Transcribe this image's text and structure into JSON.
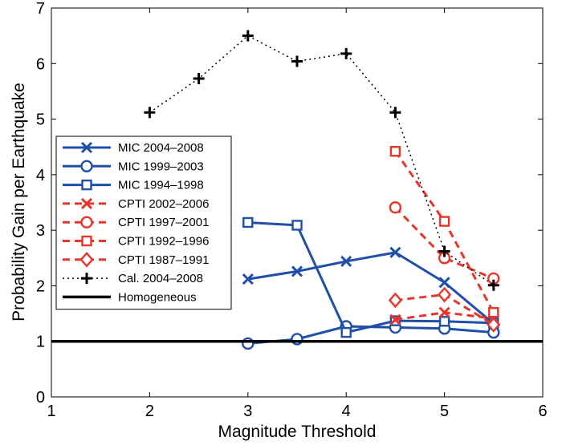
{
  "chart_data": {
    "type": "line",
    "xlabel": "Magnitude Threshold",
    "ylabel": "Probability Gain per Earthquake",
    "xlim": [
      1,
      6
    ],
    "ylim": [
      0,
      7
    ],
    "xticks": [
      "1",
      "2",
      "3",
      "4",
      "5",
      "6"
    ],
    "yticks": [
      "0",
      "1",
      "2",
      "3",
      "4",
      "5",
      "6",
      "7"
    ],
    "grid": false,
    "legend_position": "center-left",
    "series": [
      {
        "name": "MIC 2004–2008",
        "color": "#1f4fa8",
        "dash": "solid",
        "marker": "x",
        "x": [
          3.0,
          3.5,
          4.0,
          4.5,
          5.0,
          5.5
        ],
        "y": [
          2.12,
          2.26,
          2.44,
          2.6,
          2.06,
          1.32
        ]
      },
      {
        "name": "MIC 1999–2003",
        "color": "#1f4fa8",
        "dash": "solid",
        "marker": "circle",
        "x": [
          3.0,
          3.5,
          4.0,
          4.5,
          5.0,
          5.5
        ],
        "y": [
          0.96,
          1.04,
          1.27,
          1.25,
          1.23,
          1.16
        ]
      },
      {
        "name": "MIC 1994–1998",
        "color": "#1f4fa8",
        "dash": "solid",
        "marker": "square",
        "x": [
          3.0,
          3.5,
          4.0,
          4.5,
          5.0,
          5.5
        ],
        "y": [
          3.14,
          3.09,
          1.16,
          1.37,
          1.36,
          1.33
        ]
      },
      {
        "name": "CPTI 2002–2006",
        "color": "#e8352b",
        "dash": "dashed",
        "marker": "x",
        "x": [
          4.5,
          5.0,
          5.5
        ],
        "y": [
          1.39,
          1.52,
          1.41
        ]
      },
      {
        "name": "CPTI 1997–2001",
        "color": "#e8352b",
        "dash": "dashed",
        "marker": "circle",
        "x": [
          4.5,
          5.0,
          5.5
        ],
        "y": [
          3.41,
          2.5,
          2.13
        ]
      },
      {
        "name": "CPTI 1992–1996",
        "color": "#e8352b",
        "dash": "dashed",
        "marker": "square",
        "x": [
          4.5,
          5.0,
          5.5
        ],
        "y": [
          4.42,
          3.16,
          1.52
        ]
      },
      {
        "name": "CPTI 1987–1991",
        "color": "#e8352b",
        "dash": "dashed",
        "marker": "diamond",
        "x": [
          4.5,
          5.0,
          5.5
        ],
        "y": [
          1.74,
          1.84,
          1.3
        ]
      },
      {
        "name": "Cal. 2004–2008",
        "color": "#000000",
        "dash": "dotted",
        "marker": "plus",
        "x": [
          2.0,
          2.5,
          3.0,
          3.5,
          4.0,
          4.5,
          5.0,
          5.5
        ],
        "y": [
          5.12,
          5.73,
          6.5,
          6.04,
          6.18,
          5.12,
          2.62,
          2.01
        ]
      },
      {
        "name": "Homogeneous",
        "color": "#000000",
        "dash": "solid",
        "marker": "none",
        "x": [
          1,
          6
        ],
        "y": [
          1,
          1
        ]
      }
    ]
  }
}
